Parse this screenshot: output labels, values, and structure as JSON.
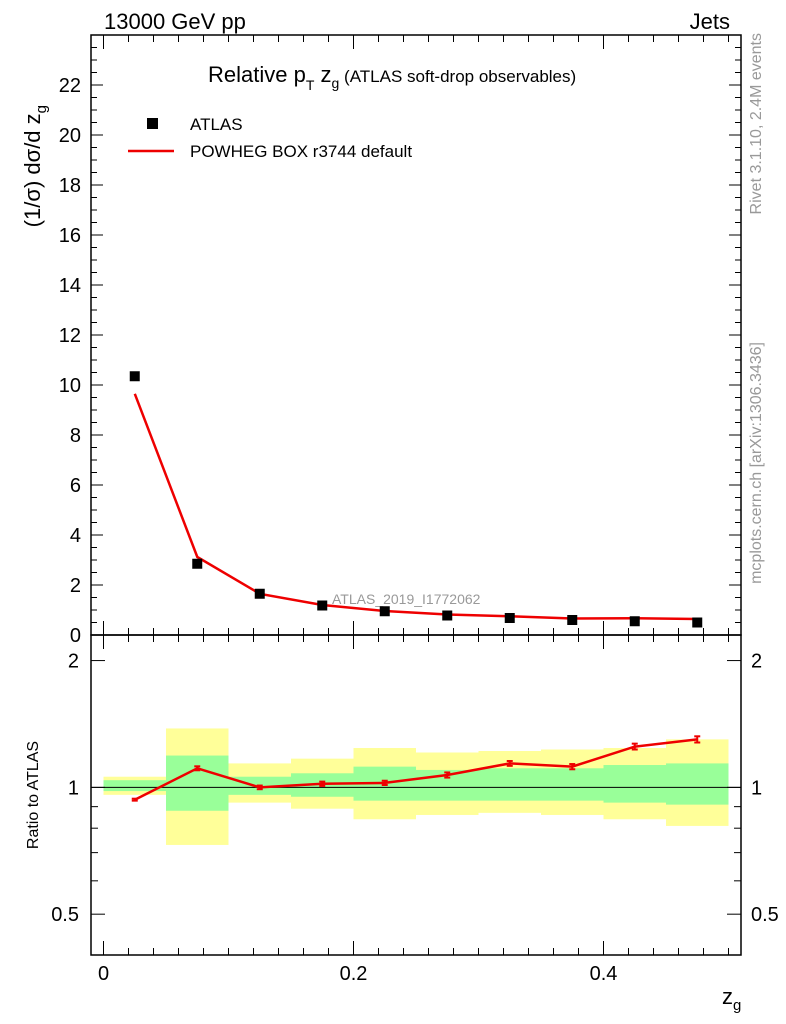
{
  "header": {
    "left": "13000 GeV pp",
    "right": "Jets"
  },
  "side_labels": {
    "rivet": "Rivet 3.1.10,  2.4M events",
    "mcplots": "mcplots.cern.ch [arXiv:1306.3436]"
  },
  "colors": {
    "data": "#000000",
    "mc": "#ee0000",
    "band_outer": "#ffff99",
    "band_inner": "#99ff99"
  },
  "chart_data": [
    {
      "type": "scatter",
      "title": "Relative p_T z_g (ATLAS soft-drop observables)",
      "title_parts": {
        "main": "Relative p",
        "sub1": "T",
        "mid": " z",
        "sub2": "g",
        "tail": " (ATLAS soft-drop observables)"
      },
      "ylabel": "(1/σ) dσ/d z_g",
      "ylabel_parts": {
        "main": "(1/σ) dσ/d z",
        "sub": "g"
      },
      "analysis_tag": "ATLAS_2019_I1772062",
      "xlim": [
        -0.01,
        0.51
      ],
      "ylim": [
        0,
        24
      ],
      "yticks": [
        0,
        2,
        4,
        6,
        8,
        10,
        12,
        14,
        16,
        18,
        20,
        22
      ],
      "ytick_labels": [
        "0",
        "2",
        "4",
        "6",
        "8",
        "10",
        "12",
        "14",
        "16",
        "18",
        "20",
        "22"
      ],
      "legend": [
        {
          "label": "ATLAS",
          "style": "marker"
        },
        {
          "label": "POWHEG BOX r3744 default",
          "style": "line"
        }
      ],
      "x": [
        0.025,
        0.075,
        0.125,
        0.175,
        0.225,
        0.275,
        0.325,
        0.375,
        0.425,
        0.475
      ],
      "series": [
        {
          "name": "ATLAS",
          "values": [
            10.35,
            2.85,
            1.65,
            1.18,
            0.95,
            0.78,
            0.68,
            0.6,
            0.55,
            0.5
          ]
        },
        {
          "name": "POWHEG BOX r3744 default",
          "values": [
            9.65,
            3.12,
            1.65,
            1.2,
            0.96,
            0.82,
            0.75,
            0.66,
            0.67,
            0.64
          ]
        }
      ]
    },
    {
      "type": "line",
      "ylabel": "Ratio to ATLAS",
      "xlabel": "z_g",
      "xlabel_parts": {
        "main": "z",
        "sub": "g"
      },
      "xlim": [
        -0.01,
        0.51
      ],
      "ylim": [
        0.4,
        2.3
      ],
      "yscale": "log",
      "yticks": [
        0.5,
        1,
        2
      ],
      "ytick_labels": [
        "0.5",
        "1",
        "2"
      ],
      "xticks": [
        0,
        0.2,
        0.4
      ],
      "xtick_labels": [
        "0",
        "0.2",
        "0.4"
      ],
      "bins": [
        [
          0.0,
          0.05
        ],
        [
          0.05,
          0.1
        ],
        [
          0.1,
          0.15
        ],
        [
          0.15,
          0.2
        ],
        [
          0.2,
          0.25
        ],
        [
          0.25,
          0.3
        ],
        [
          0.3,
          0.35
        ],
        [
          0.35,
          0.4
        ],
        [
          0.4,
          0.45
        ],
        [
          0.45,
          0.5
        ]
      ],
      "band_outer": [
        [
          0.96,
          1.06
        ],
        [
          0.73,
          1.38
        ],
        [
          0.92,
          1.14
        ],
        [
          0.89,
          1.17
        ],
        [
          0.84,
          1.24
        ],
        [
          0.86,
          1.21
        ],
        [
          0.87,
          1.22
        ],
        [
          0.86,
          1.23
        ],
        [
          0.84,
          1.24
        ],
        [
          0.81,
          1.3
        ]
      ],
      "band_inner": [
        [
          0.98,
          1.04
        ],
        [
          0.88,
          1.19
        ],
        [
          0.96,
          1.06
        ],
        [
          0.95,
          1.08
        ],
        [
          0.93,
          1.12
        ],
        [
          0.93,
          1.1
        ],
        [
          0.93,
          1.11
        ],
        [
          0.93,
          1.11
        ],
        [
          0.92,
          1.13
        ],
        [
          0.91,
          1.14
        ]
      ],
      "ratio_x": [
        0.025,
        0.075,
        0.125,
        0.175,
        0.225,
        0.275,
        0.325,
        0.375,
        0.425,
        0.475
      ],
      "ratio": [
        0.935,
        1.11,
        1.0,
        1.02,
        1.025,
        1.07,
        1.14,
        1.12,
        1.25,
        1.3
      ],
      "ratio_err": [
        0.005,
        0.012,
        0.01,
        0.012,
        0.012,
        0.015,
        0.015,
        0.016,
        0.02,
        0.022
      ]
    }
  ]
}
